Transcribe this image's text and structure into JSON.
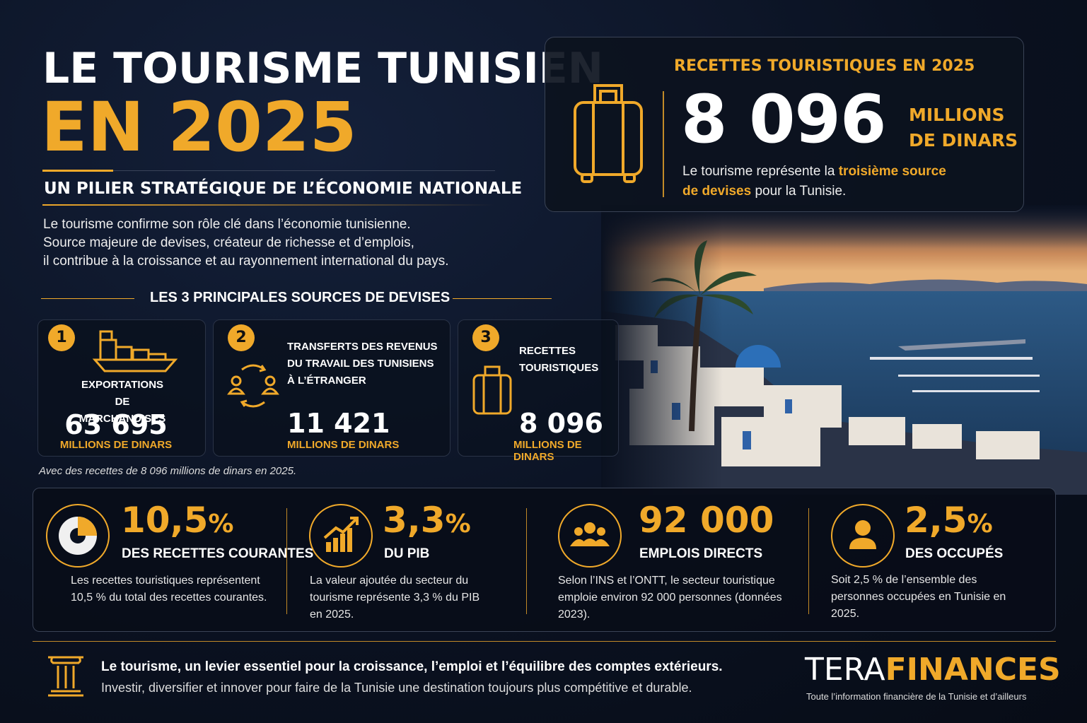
{
  "header": {
    "title_line1": "LE TOURISME TUNISIEN",
    "title_line2": "EN 2025",
    "subtitle": "UN PILIER STRATÉGIQUE DE L’ÉCONOMIE NATIONALE",
    "intro": [
      "Le tourisme confirme son rôle clé dans l’économie tunisienne.",
      "Source majeure de devises, créateur de richesse et d’emplois,",
      "il contribue à la croissance et au rayonnement international du pays."
    ]
  },
  "highlight": {
    "title": "RECETTES TOURISTIQUES EN 2025",
    "value": "8 096",
    "unit_line1": "MILLIONS",
    "unit_line2": "DE DINARS",
    "text_before": "Le tourisme représente la ",
    "text_emphasis": "troisième source de devises",
    "text_after": " pour la Tunisie."
  },
  "sources": {
    "title": "LES 3 PRINCIPALES SOURCES DE DEVISES",
    "items": [
      {
        "rank": "1",
        "label": "EXPORTATIONS DE MARCHANDISES",
        "value": "63 695",
        "unit": "MILLIONS DE DINARS"
      },
      {
        "rank": "2",
        "label": "TRANSFERTS DES REVENUS DU TRAVAIL DES TUNISIENS À L’ÉTRANGER",
        "value": "11 421",
        "unit": "MILLIONS DE DINARS"
      },
      {
        "rank": "3",
        "label": "RECETTES TOURISTIQUES",
        "value": "8 096",
        "unit": "MILLIONS DE DINARS"
      }
    ],
    "note": "Avec des recettes de 8 096 millions de dinars en 2025."
  },
  "stats": [
    {
      "value": "10,5",
      "unit": "%",
      "label": "DES RECETTES COURANTES",
      "text": "Les recettes touristiques représentent 10,5 % du total des recettes courantes."
    },
    {
      "value": "3,3",
      "unit": "%",
      "label": "DU PIB",
      "text": "La valeur ajoutée du secteur du tourisme représente 3,3 % du PIB en 2025."
    },
    {
      "value": "92 000",
      "label": "EMPLOIS DIRECTS",
      "text": "Selon l’INS et l’ONTT, le secteur touristique emploie environ 92 000 personnes (données 2023)."
    },
    {
      "value": "2,5",
      "unit": "%",
      "label": "DES OCCUPÉS",
      "text": "Soit 2,5 % de l’ensemble des personnes occupées en Tunisie en 2025."
    }
  ],
  "footer": {
    "line1": "Le tourisme, un levier essentiel pour la croissance, l’emploi et l’équilibre des comptes extérieurs.",
    "line2": "Investir, diversifier et innover pour faire de la Tunisie une destination toujours plus compétitive et durable.",
    "brand_part1": "TERA",
    "brand_part2": "FINANCES",
    "tagline": "Toute l’information financière de la Tunisie et d’ailleurs"
  }
}
